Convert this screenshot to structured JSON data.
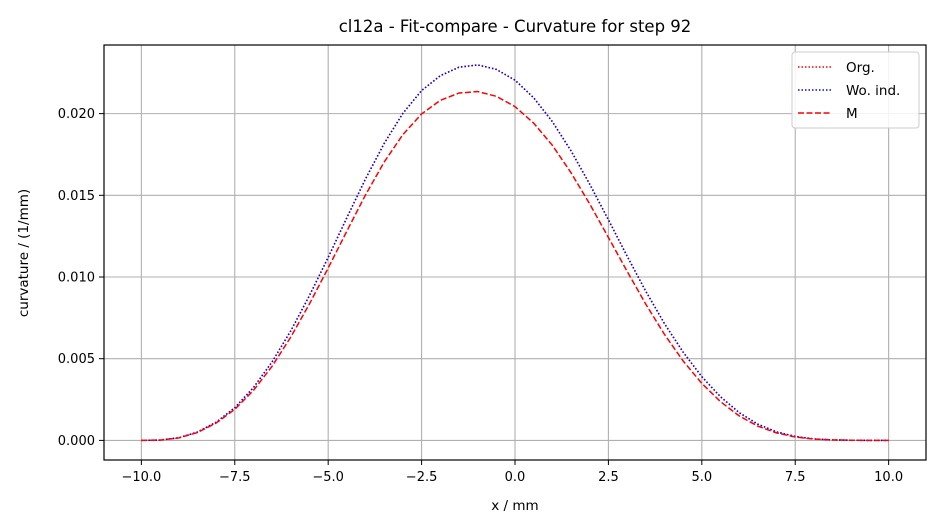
{
  "chart_data": {
    "type": "line",
    "title": "cl12a - Fit-compare - Curvature for step 92",
    "xlabel": "x / mm",
    "ylabel": "curvature / (1/mm)",
    "xlim": [
      -11,
      11
    ],
    "ylim": [
      -0.0012,
      0.0242
    ],
    "xticks": [
      -10,
      -7.5,
      -5,
      -2.5,
      0,
      2.5,
      5,
      7.5,
      10
    ],
    "xtick_labels": [
      "−10.0",
      "−7.5",
      "−5.0",
      "−2.5",
      "0.0",
      "2.5",
      "5.0",
      "7.5",
      "10.0"
    ],
    "yticks": [
      0,
      0.005,
      0.01,
      0.015,
      0.02
    ],
    "ytick_labels": [
      "0.000",
      "0.005",
      "0.010",
      "0.015",
      "0.020"
    ],
    "grid": true,
    "legend_position": "top-right",
    "series": [
      {
        "name": "Org.",
        "color": "#ff0000",
        "style": "dotted",
        "x": [
          -10,
          -9.5,
          -9,
          -8.5,
          -8,
          -7.5,
          -7,
          -6.5,
          -6,
          -5.5,
          -5,
          -4.5,
          -4,
          -3.5,
          -3,
          -2.5,
          -2,
          -1.5,
          -1,
          -0.5,
          0,
          0.5,
          1,
          1.5,
          2,
          2.5,
          3,
          3.5,
          4,
          4.5,
          5,
          5.5,
          6,
          6.5,
          7,
          7.5,
          8,
          8.5,
          9,
          9.5,
          10
        ],
        "y": [
          0.0,
          2e-05,
          0.00016,
          0.00051,
          0.00111,
          0.002,
          0.00323,
          0.00481,
          0.00671,
          0.00887,
          0.0112,
          0.01363,
          0.01601,
          0.01818,
          0.02002,
          0.02141,
          0.02232,
          0.02284,
          0.02298,
          0.02271,
          0.02205,
          0.02097,
          0.01951,
          0.01772,
          0.01568,
          0.0135,
          0.01128,
          0.00913,
          0.00715,
          0.0054,
          0.0039,
          0.00267,
          0.0017,
          0.00099,
          0.00052,
          0.00024,
          9e-05,
          3e-05,
          1e-05,
          0.0,
          0.0
        ]
      },
      {
        "name": "Wo. ind.",
        "color": "#0000ff",
        "style": "dotted",
        "x": [
          -10,
          -9.5,
          -9,
          -8.5,
          -8,
          -7.5,
          -7,
          -6.5,
          -6,
          -5.5,
          -5,
          -4.5,
          -4,
          -3.5,
          -3,
          -2.5,
          -2,
          -1.5,
          -1,
          -0.5,
          0,
          0.5,
          1,
          1.5,
          2,
          2.5,
          3,
          3.5,
          4,
          4.5,
          5,
          5.5,
          6,
          6.5,
          7,
          7.5,
          8,
          8.5,
          9,
          9.5,
          10
        ],
        "y": [
          0.0,
          2e-05,
          0.00016,
          0.00051,
          0.00111,
          0.002,
          0.00323,
          0.00481,
          0.00671,
          0.00887,
          0.0112,
          0.01363,
          0.01601,
          0.01818,
          0.02002,
          0.02141,
          0.02232,
          0.02284,
          0.02298,
          0.02271,
          0.02205,
          0.02097,
          0.01951,
          0.01772,
          0.01568,
          0.0135,
          0.01128,
          0.00913,
          0.00715,
          0.0054,
          0.0039,
          0.00267,
          0.0017,
          0.00099,
          0.00052,
          0.00024,
          9e-05,
          3e-05,
          1e-05,
          0.0,
          0.0
        ]
      },
      {
        "name": "M",
        "color": "#ff0000",
        "style": "dashed",
        "x": [
          -10,
          -9.5,
          -9,
          -8.5,
          -8,
          -7.5,
          -7,
          -6.5,
          -6,
          -5.5,
          -5,
          -4.5,
          -4,
          -3.5,
          -3,
          -2.5,
          -2,
          -1.5,
          -1,
          -0.5,
          0,
          0.5,
          1,
          1.5,
          2,
          2.5,
          3,
          3.5,
          4,
          4.5,
          5,
          5.5,
          6,
          6.5,
          7,
          7.5,
          8,
          8.5,
          9,
          9.5,
          10
        ],
        "y": [
          0.0,
          2e-05,
          0.00015,
          0.00048,
          0.00106,
          0.0019,
          0.00306,
          0.00454,
          0.00633,
          0.00836,
          0.01055,
          0.01281,
          0.01503,
          0.01704,
          0.01872,
          0.01998,
          0.02081,
          0.02126,
          0.02135,
          0.02106,
          0.02043,
          0.01942,
          0.01806,
          0.01638,
          0.01447,
          0.01242,
          0.01035,
          0.00834,
          0.00649,
          0.00486,
          0.00349,
          0.00237,
          0.0015,
          0.00087,
          0.00046,
          0.00021,
          8e-05,
          3e-05,
          1e-05,
          0.0,
          0.0
        ]
      }
    ]
  }
}
